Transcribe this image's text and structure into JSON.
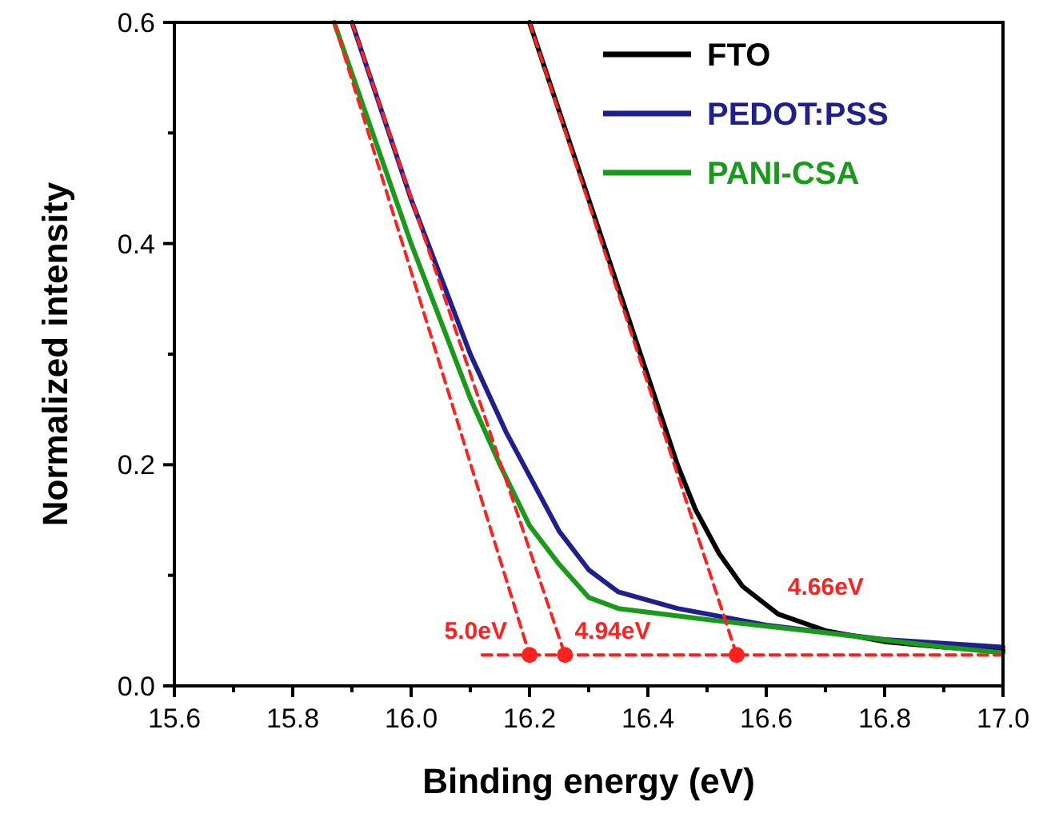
{
  "chart_data": {
    "type": "line",
    "xlabel": "Binding energy (eV)",
    "ylabel": "Normalized intensity",
    "xlim": [
      15.6,
      17.0
    ],
    "ylim": [
      0,
      0.6
    ],
    "xticks": [
      15.6,
      {
        "value": 15.7,
        "label": null
      },
      15.8,
      {
        "value": 15.9,
        "label": null
      },
      {
        "value": 16,
        "label": "16.0"
      },
      {
        "value": 16.1,
        "label": null
      },
      16.2,
      {
        "value": 16.3,
        "label": null
      },
      16.4,
      {
        "value": 16.5,
        "label": null
      },
      16.6,
      {
        "value": 16.7,
        "label": null
      },
      16.8,
      {
        "value": 16.9,
        "label": null
      },
      {
        "value": 17,
        "label": "17.0"
      }
    ],
    "yticks": [
      {
        "value": 0,
        "label": "0.0"
      },
      {
        "value": 0.1,
        "label": null
      },
      0.2,
      {
        "value": 0.3,
        "label": null
      },
      0.4,
      {
        "value": 0.5,
        "label": null
      },
      0.6
    ],
    "legend": "top right",
    "line_style": "solid",
    "marker": "none",
    "series": [
      {
        "name": "FTO",
        "color": "#000000",
        "x": [
          16.2,
          16.3,
          16.4,
          16.45,
          16.48,
          16.52,
          16.56,
          16.62,
          16.7,
          16.8,
          16.9,
          17.0
        ],
        "values": [
          0.6,
          0.44,
          0.28,
          0.2,
          0.16,
          0.12,
          0.09,
          0.065,
          0.05,
          0.04,
          0.035,
          0.032
        ]
      },
      {
        "name": "PEDOT:PSS",
        "color": "#1f1f8f",
        "x": [
          15.9,
          16.0,
          16.1,
          16.16,
          16.2,
          16.25,
          16.3,
          16.35,
          16.45,
          16.6,
          16.8,
          17.0
        ],
        "values": [
          0.6,
          0.44,
          0.3,
          0.23,
          0.19,
          0.14,
          0.105,
          0.085,
          0.07,
          0.055,
          0.042,
          0.035
        ]
      },
      {
        "name": "PANI-CSA",
        "color": "#1a9a1a",
        "x": [
          15.87,
          16.0,
          16.1,
          16.15,
          16.2,
          16.25,
          16.3,
          16.35,
          16.5,
          16.7,
          16.9,
          17.0
        ],
        "values": [
          0.6,
          0.4,
          0.26,
          0.2,
          0.145,
          0.11,
          0.08,
          0.07,
          0.06,
          0.048,
          0.035,
          0.03
        ]
      },
      {
        "color": "#ff2020",
        "line_style": "dashed",
        "x": [
          16.2,
          16.55
        ],
        "values": [
          0.6,
          0.028
        ]
      },
      {
        "color": "#ff2020",
        "line_style": "dashed",
        "x": [
          15.9,
          16.26
        ],
        "values": [
          0.6,
          0.028
        ]
      },
      {
        "color": "#ff2020",
        "line_style": "dashed",
        "x": [
          15.87,
          16.2
        ],
        "values": [
          0.6,
          0.028
        ]
      },
      {
        "color": "#ff2020",
        "line_style": "dashed",
        "x": [
          16.12,
          17.0
        ],
        "values": [
          0.028,
          0.028
        ]
      },
      {
        "type": "scatter",
        "color": "#ff2020",
        "marker": "circle",
        "x": [
          16.2,
          16.26,
          16.55
        ],
        "values": [
          0.028,
          0.028,
          0.028
        ]
      }
    ],
    "annotations": [
      {
        "text": "5.0eV",
        "x": 16.2,
        "y": 0.028
      },
      {
        "text": "4.94eV",
        "x": 16.26,
        "y": 0.028
      },
      {
        "text": "4.66eV",
        "x": 16.62,
        "y": 0.065
      }
    ]
  }
}
